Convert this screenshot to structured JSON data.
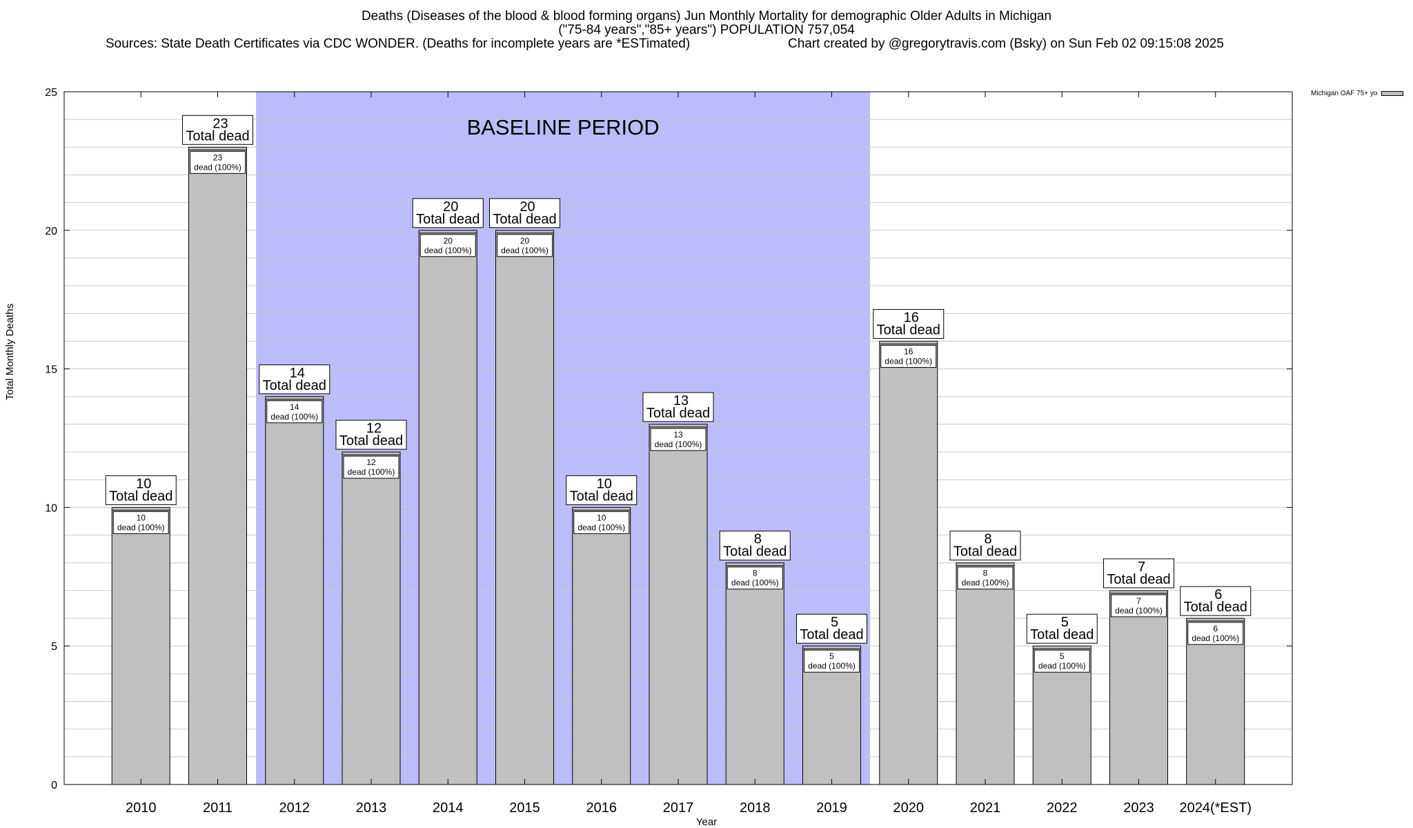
{
  "title": {
    "line1": "Deaths (Diseases of the blood & blood forming organs) Jun Monthly Mortality for demographic Older Adults in Michigan",
    "line2": "(\"75-84 years\",\"85+ years\") POPULATION 757,054",
    "sources": "Sources: State Death Certificates via CDC WONDER. (Deaths for incomplete years are *ESTimated)",
    "credit": "Chart created by @gregorytravis.com (Bsky) on Sun Feb 02 09:15:08 2025"
  },
  "legend": {
    "label": "Michigan OAF 75+ yo"
  },
  "colors": {
    "bar": "#c0c0c0",
    "baseline_band": "#bcbcfa",
    "grid": "#c8c8c8"
  },
  "chart_data": {
    "type": "bar",
    "categories": [
      "2010",
      "2011",
      "2012",
      "2013",
      "2014",
      "2015",
      "2016",
      "2017",
      "2018",
      "2019",
      "2020",
      "2021",
      "2022",
      "2023",
      "2024(*EST)"
    ],
    "series": [
      {
        "name": "Michigan OAF 75+ yo",
        "values": [
          10,
          23,
          14,
          12,
          20,
          20,
          10,
          13,
          8,
          5,
          16,
          8,
          5,
          7,
          6
        ]
      }
    ],
    "total_label": "Total dead",
    "inner_label": "dead (100%)",
    "baseline_period": {
      "label": "BASELINE PERIOD",
      "from": "2012",
      "to": "2019"
    },
    "xlabel": "Year",
    "ylabel": "Total Monthly Deaths",
    "ylim": [
      0,
      25
    ],
    "yticks": [
      0,
      5,
      10,
      15,
      20,
      25
    ],
    "grid": true,
    "legend_position": "top-right"
  }
}
